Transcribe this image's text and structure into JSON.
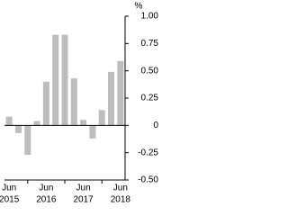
{
  "chart_data": {
    "type": "bar",
    "unit": "%",
    "categories": [
      "Jun",
      null,
      null,
      null,
      "Jun",
      null,
      null,
      null,
      "Jun",
      null,
      null,
      null,
      "Jun"
    ],
    "year_labels": [
      "2015",
      null,
      null,
      null,
      "2016",
      null,
      null,
      null,
      "2017",
      null,
      null,
      null,
      "2018"
    ],
    "values": [
      0.08,
      -0.07,
      -0.27,
      0.04,
      0.4,
      0.83,
      0.83,
      0.43,
      0.05,
      -0.12,
      0.14,
      0.49,
      0.59
    ],
    "color": "#bdbdbd",
    "ylim": [
      -0.5,
      1
    ],
    "yticks": [
      {
        "value": 1,
        "label": "1.00"
      },
      0.75,
      {
        "value": 0.5,
        "label": "0.50"
      },
      0.25,
      0,
      -0.25,
      {
        "value": -0.5,
        "label": "-0.50"
      }
    ]
  }
}
